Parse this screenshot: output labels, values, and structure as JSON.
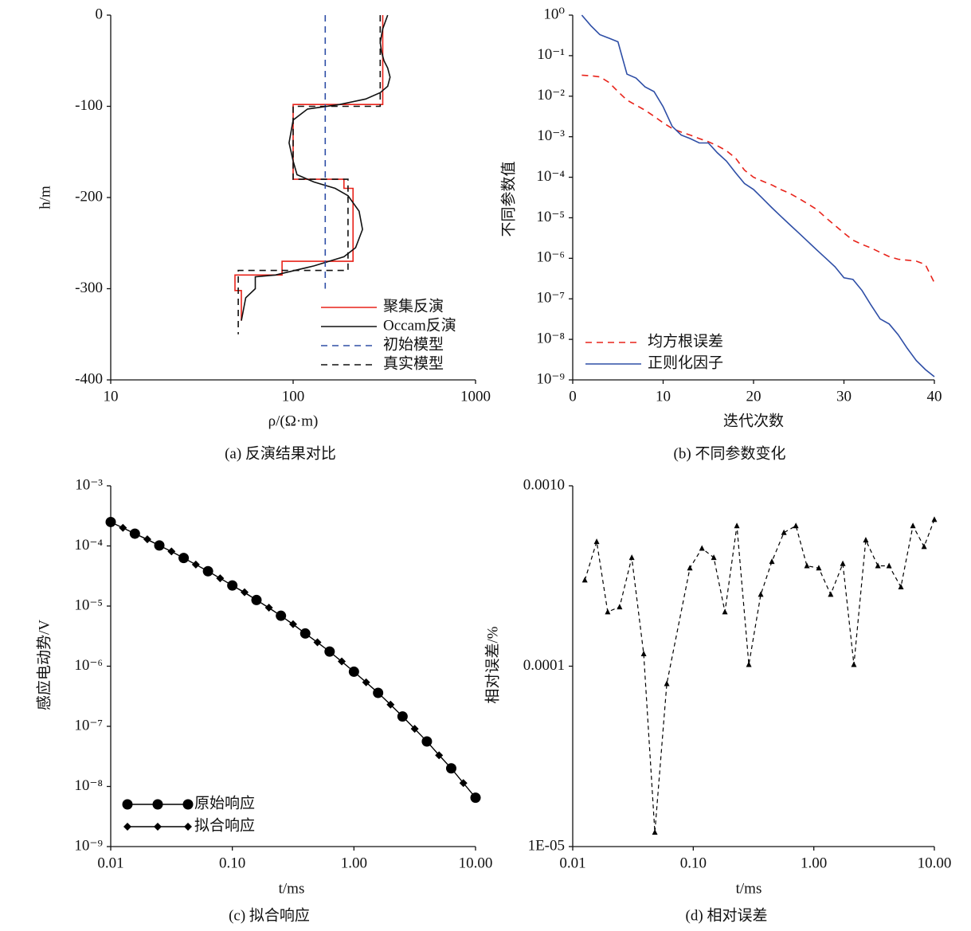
{
  "chart_data": [
    {
      "type": "line",
      "xlabel": "ρ/(Ω·m)",
      "ylabel": "h/m",
      "caption": "(a) 反演结果对比",
      "xscale": "log",
      "xlim": [
        10,
        1000
      ],
      "xticks": [
        10,
        100,
        1000
      ],
      "ylim": [
        -400,
        0
      ],
      "yticks": [
        0,
        -100,
        -200,
        -300,
        -400
      ],
      "legend": "lower right",
      "series": [
        {
          "name": "聚集反演",
          "color": "#e8231a",
          "dash": false,
          "x": [
            310,
            310,
            100,
            100,
            190,
            190,
            213,
            213,
            87,
            87,
            48,
            48,
            52,
            52
          ],
          "values": [
            0,
            -98,
            -98,
            -180,
            -180,
            -190,
            -190,
            -270,
            -270,
            -285,
            -285,
            -302,
            -302,
            -335
          ]
        },
        {
          "name": "Occam反演",
          "color": "#111111",
          "dash": false,
          "x": [
            330,
            310,
            300,
            305,
            315,
            330,
            340,
            330,
            300,
            250,
            180,
            120,
            100,
            95,
            100,
            105,
            130,
            170,
            200,
            230,
            240,
            220,
            190,
            130,
            80,
            62,
            62,
            55,
            52
          ],
          "values": [
            0,
            -15,
            -30,
            -40,
            -50,
            -58,
            -68,
            -78,
            -85,
            -92,
            -98,
            -103,
            -115,
            -140,
            -160,
            -175,
            -183,
            -190,
            -198,
            -215,
            -235,
            -255,
            -265,
            -275,
            -285,
            -287,
            -300,
            -310,
            -335
          ]
        },
        {
          "name": "初始模型",
          "color": "#2e4ea6",
          "dash": true,
          "x": [
            150,
            150
          ],
          "values": [
            0,
            -300
          ]
        },
        {
          "name": "真实模型",
          "color": "#111111",
          "dash": true,
          "x": [
            300,
            300,
            100,
            100,
            200,
            200,
            50,
            50
          ],
          "values": [
            0,
            -100,
            -100,
            -180,
            -180,
            -280,
            -280,
            -350
          ]
        }
      ]
    },
    {
      "type": "line",
      "xlabel": "迭代次数",
      "ylabel": "不同参数值",
      "caption": "(b) 不同参数变化",
      "xlim": [
        0,
        40
      ],
      "xticks": [
        0,
        10,
        20,
        30,
        40
      ],
      "yscale": "log",
      "ylim": [
        1e-09,
        1
      ],
      "yticks": [
        {
          "value": 1,
          "label": "10⁰"
        },
        {
          "value": 0.1,
          "label": "10⁻¹"
        },
        {
          "value": 0.01,
          "label": "10⁻²"
        },
        {
          "value": 0.001,
          "label": "10⁻³"
        },
        {
          "value": 0.0001,
          "label": "10⁻⁴"
        },
        {
          "value": 1e-05,
          "label": "10⁻⁵"
        },
        {
          "value": 1e-06,
          "label": "10⁻⁶"
        },
        {
          "value": 1e-07,
          "label": "10⁻⁷"
        },
        {
          "value": 1e-08,
          "label": "10⁻⁸"
        },
        {
          "value": 1e-09,
          "label": "10⁻⁹"
        }
      ],
      "legend": "lower left",
      "x": [
        1,
        2,
        3,
        4,
        5,
        6,
        7,
        8,
        9,
        10,
        11,
        12,
        13,
        14,
        15,
        16,
        17,
        18,
        19,
        20,
        21,
        22,
        23,
        24,
        25,
        26,
        27,
        28,
        29,
        30,
        31,
        32,
        33,
        34,
        35,
        36,
        37,
        38,
        39,
        40
      ],
      "series": [
        {
          "name": "均方根误差",
          "color": "#e8231a",
          "dash": true,
          "values": [
            0.033,
            0.032,
            0.03,
            0.022,
            0.013,
            0.008,
            0.006,
            0.0045,
            0.0032,
            0.0022,
            0.0016,
            0.0013,
            0.0011,
            0.0009,
            0.00075,
            0.0006,
            0.00045,
            0.0003,
            0.00015,
            0.0001,
            8e-05,
            6.5e-05,
            5e-05,
            4e-05,
            3e-05,
            2.2e-05,
            1.6e-05,
            1e-05,
            6.5e-06,
            4.2e-06,
            2.8e-06,
            2.2e-06,
            1.8e-06,
            1.4e-06,
            1.1e-06,
            9.5e-07,
            9e-07,
            8.5e-07,
            7e-07,
            2.5e-07
          ]
        },
        {
          "name": "正则化因子",
          "color": "#2e4ea6",
          "dash": false,
          "values": [
            1.0,
            0.55,
            0.33,
            0.27,
            0.22,
            0.035,
            0.028,
            0.017,
            0.013,
            0.0055,
            0.0018,
            0.0011,
            0.0009,
            0.0007,
            0.0007,
            0.0004,
            0.00025,
            0.00013,
            7e-05,
            5e-05,
            3e-05,
            1.8e-05,
            1.1e-05,
            6.8e-06,
            4.2e-06,
            2.6e-06,
            1.6e-06,
            1e-06,
            6.2e-07,
            3.3e-07,
            3e-07,
            1.6e-07,
            7e-08,
            3.2e-08,
            2.4e-08,
            1.3e-08,
            6e-09,
            3e-09,
            1.8e-09,
            1.2e-09
          ]
        }
      ]
    },
    {
      "type": "line",
      "xlabel": "t/ms",
      "ylabel": "感应电动势/V",
      "caption": "(c) 拟合响应",
      "xscale": "log",
      "xlim": [
        0.01,
        10
      ],
      "xticks": [
        {
          "value": 0.01,
          "label": "0.01"
        },
        {
          "value": 0.1,
          "label": "0.10"
        },
        {
          "value": 1,
          "label": "1.00"
        },
        {
          "value": 10,
          "label": "10.00"
        }
      ],
      "yscale": "log",
      "ylim": [
        1e-09,
        0.001
      ],
      "yticks": [
        {
          "value": 0.001,
          "label": "10⁻³"
        },
        {
          "value": 0.0001,
          "label": "10⁻⁴"
        },
        {
          "value": 1e-05,
          "label": "10⁻⁵"
        },
        {
          "value": 1e-06,
          "label": "10⁻⁶"
        },
        {
          "value": 1e-07,
          "label": "10⁻⁷"
        },
        {
          "value": 1e-08,
          "label": "10⁻⁸"
        },
        {
          "value": 1e-09,
          "label": "10⁻⁹"
        }
      ],
      "legend": "lower left",
      "series": [
        {
          "name": "原始响应",
          "color": "#000000",
          "dash": false,
          "marker": "circle",
          "x": [
            0.01,
            0.0158,
            0.0251,
            0.0398,
            0.0631,
            0.1,
            0.158,
            0.251,
            0.398,
            0.631,
            1,
            1.58,
            2.51,
            3.98,
            6.31,
            10
          ],
          "values": [
            0.00025,
            0.00016,
            0.000102,
            6.3e-05,
            3.8e-05,
            2.2e-05,
            1.26e-05,
            6.9e-06,
            3.5e-06,
            1.75e-06,
            8.1e-07,
            3.6e-07,
            1.46e-07,
            5.6e-08,
            2e-08,
            6.5e-09
          ]
        },
        {
          "name": "拟合响应",
          "color": "#000000",
          "dash": false,
          "marker": "diamond",
          "x": [
            0.01,
            0.0126,
            0.0158,
            0.02,
            0.0251,
            0.0316,
            0.0398,
            0.0501,
            0.0631,
            0.0794,
            0.1,
            0.126,
            0.158,
            0.2,
            0.251,
            0.316,
            0.398,
            0.501,
            0.631,
            0.794,
            1,
            1.26,
            1.58,
            2,
            2.51,
            3.16,
            3.98,
            5.01,
            6.31,
            7.94,
            10
          ],
          "values": [
            0.00025,
            0.0002,
            0.00016,
            0.000129,
            0.000102,
            8.1e-05,
            6.3e-05,
            4.9e-05,
            3.8e-05,
            2.9e-05,
            2.2e-05,
            1.7e-05,
            1.26e-05,
            9.4e-06,
            6.9e-06,
            5e-06,
            3.5e-06,
            2.5e-06,
            1.75e-06,
            1.2e-06,
            8.1e-07,
            5.4e-07,
            3.6e-07,
            2.3e-07,
            1.46e-07,
            9.1e-08,
            5.6e-08,
            3.3e-08,
            2e-08,
            1.14e-08,
            6.5e-09
          ]
        }
      ]
    },
    {
      "type": "line",
      "xlabel": "t/ms",
      "ylabel": "相对误差/%",
      "caption": "(d) 相对误差",
      "xscale": "log",
      "xlim": [
        0.01,
        10
      ],
      "xticks": [
        {
          "value": 0.01,
          "label": "0.01"
        },
        {
          "value": 0.1,
          "label": "0.10"
        },
        {
          "value": 1,
          "label": "1.00"
        },
        {
          "value": 10,
          "label": "10.00"
        }
      ],
      "yscale": "log",
      "ylim": [
        1e-05,
        0.001
      ],
      "yticks": [
        {
          "value": 0.001,
          "label": "0.0010"
        },
        0.0001,
        {
          "value": 1e-05,
          "label": "1E-05"
        }
      ],
      "series": [
        {
          "color": "#000000",
          "dash": true,
          "marker": "triangle",
          "x": [
            0.0126,
            0.0158,
            0.0195,
            0.0245,
            0.0309,
            0.0388,
            0.048,
            0.0603,
            0.0937,
            0.118,
            0.148,
            0.183,
            0.23,
            0.289,
            0.363,
            0.449,
            0.565,
            0.71,
            0.877,
            1.1,
            1.38,
            1.74,
            2.15,
            2.7,
            3.4,
            4.21,
            5.28,
            6.64,
            8.22,
            10
          ],
          "values": [
            0.0003,
            0.00049,
            0.0002,
            0.000213,
            0.0004,
            0.000117,
            1.2e-05,
            8e-05,
            0.00035,
            0.00045,
            0.0004,
            0.0002,
            0.0006,
            0.000102,
            0.00025,
            0.00038,
            0.00055,
            0.0006,
            0.00036,
            0.00035,
            0.00025,
            0.00037,
            0.000102,
            0.0005,
            0.00036,
            0.00036,
            0.000275,
            0.0006,
            0.00046,
            0.00065
          ]
        }
      ]
    }
  ]
}
